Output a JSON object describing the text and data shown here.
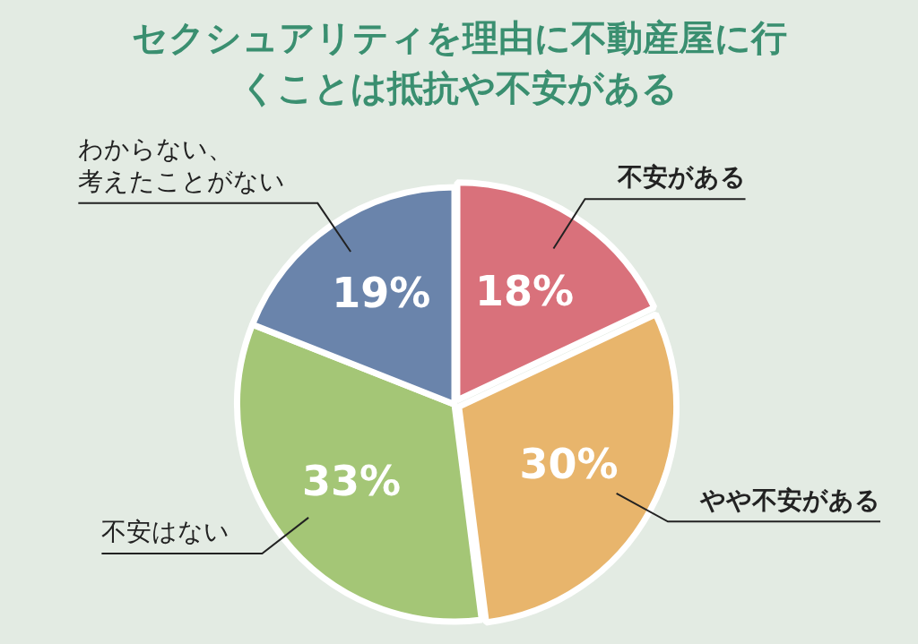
{
  "chart_data": {
    "type": "pie",
    "title": "セクシュアリティを理由に不動産屋に行くことは抵抗や不安がある",
    "categories": [
      "不安がある",
      "やや不安がある",
      "不安はない",
      "わからない、考えたことがない"
    ],
    "values": [
      18,
      30,
      33,
      19
    ],
    "value_labels": [
      "18%",
      "30%",
      "33%",
      "19%"
    ],
    "colors": [
      "#d9717b",
      "#e8b56c",
      "#a4c676",
      "#6a84ab"
    ],
    "legend": false
  }
}
